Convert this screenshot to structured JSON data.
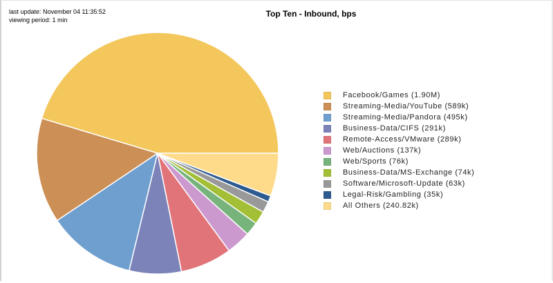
{
  "header": {
    "last_update": "last update: November 04 11:35:52",
    "viewing_period": "viewing period: 1 min"
  },
  "chart_data": {
    "type": "pie",
    "title": "Top Ten - Inbound, bps",
    "legend_position": "right",
    "slices": [
      {
        "label": "Facebook/Games (1.90M)",
        "value": 1900000,
        "color": "#f3c75b"
      },
      {
        "label": "Streaming-Media/YouTube (589k)",
        "value": 589000,
        "color": "#cc8f55"
      },
      {
        "label": "Streaming-Media/Pandora (495k)",
        "value": 495000,
        "color": "#6f9fcf"
      },
      {
        "label": "Business-Data/CIFS (291k)",
        "value": 291000,
        "color": "#7b83b8"
      },
      {
        "label": "Remote-Access/VMware (289k)",
        "value": 289000,
        "color": "#e17479"
      },
      {
        "label": "Web/Auctions (137k)",
        "value": 137000,
        "color": "#cc99cf"
      },
      {
        "label": "Web/Sports (76k)",
        "value": 76000,
        "color": "#77b47c"
      },
      {
        "label": "Business-Data/MS-Exchange (74k)",
        "value": 74000,
        "color": "#a2bf35"
      },
      {
        "label": "Software/Microsoft-Update (63k)",
        "value": 63000,
        "color": "#999999"
      },
      {
        "label": "Legal-Risk/Gambling (35k)",
        "value": 35000,
        "color": "#2e5b8f"
      },
      {
        "label": "All Others (240.82k)",
        "value": 240820,
        "color": "#fedb8b"
      }
    ]
  }
}
